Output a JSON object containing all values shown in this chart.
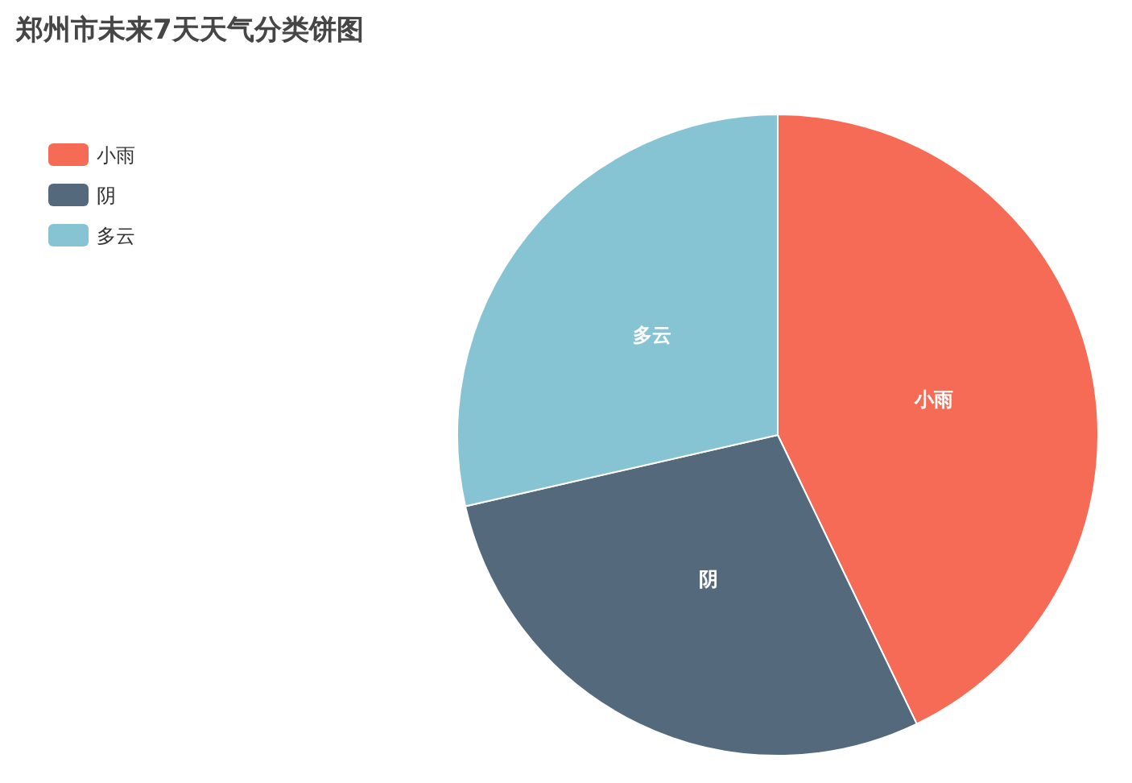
{
  "chart_data": {
    "type": "pie",
    "title": "郑州市未来7天天气分类饼图",
    "categories": [
      "小雨",
      "阴",
      "多云"
    ],
    "values": [
      42.86,
      28.57,
      28.57
    ],
    "colors": [
      "#f66b55",
      "#546a7c",
      "#87c4d3"
    ],
    "legend": "top left"
  }
}
